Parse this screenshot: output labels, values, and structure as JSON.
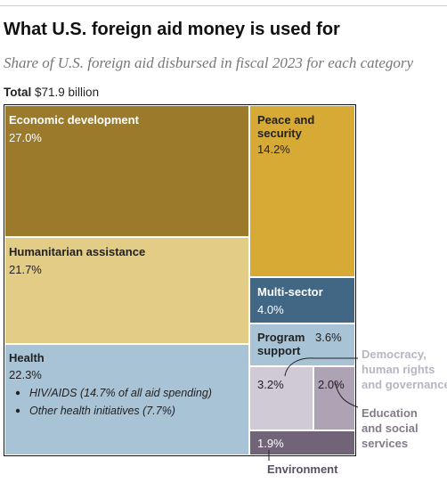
{
  "header": {
    "title": "What U.S. foreign aid money is used for",
    "subtitle": "Share of U.S. foreign aid disbursed in fiscal 2023 for each category",
    "total_label": "Total",
    "total_value": "$71.9 billion"
  },
  "chart_data": {
    "type": "treemap",
    "title": "What U.S. foreign aid money is used for",
    "subtitle": "Share of U.S. foreign aid disbursed in fiscal 2023 for each category",
    "total": "$71.9 billion",
    "unit": "%",
    "cells": [
      {
        "id": "economic",
        "label": [
          "Economic development"
        ],
        "value": 27.0,
        "value_label": "27.0%",
        "color": "#9b7b2b",
        "text_color": "#ffffff"
      },
      {
        "id": "humanitarian",
        "label": [
          "Humanitarian assistance"
        ],
        "value": 21.7,
        "value_label": "21.7%",
        "color": "#e3cd86",
        "text_color": "#222222"
      },
      {
        "id": "health",
        "label": [
          "Health"
        ],
        "value": 22.3,
        "value_label": "22.3%",
        "color": "#a9c3d6",
        "text_color": "#222222",
        "sub_items": [
          "HIV/AIDS (14.7% of all aid spending)",
          "Other health initiatives (7.7%)"
        ]
      },
      {
        "id": "peace",
        "label": [
          "Peace and",
          "security"
        ],
        "value": 14.2,
        "value_label": "14.2%",
        "color": "#d6aa34",
        "text_color": "#222222"
      },
      {
        "id": "multisector",
        "label": [
          "Multi-sector"
        ],
        "value": 4.0,
        "value_label": "4.0%",
        "color": "#426784",
        "text_color": "#ffffff"
      },
      {
        "id": "program",
        "label": [
          "Program",
          "support"
        ],
        "value": 3.6,
        "value_label": "3.6%",
        "color": "#a9c3d6",
        "text_color": "#222222"
      },
      {
        "id": "democracy",
        "label": [
          "Democracy,",
          "human rights",
          "and governance"
        ],
        "value": 3.2,
        "value_label": "3.2%",
        "color": "#d0c9d6",
        "text_color": "#222222"
      },
      {
        "id": "education",
        "label": [
          "Education",
          "and social",
          "services"
        ],
        "value": 2.0,
        "value_label": "2.0%",
        "color": "#aea3b5",
        "text_color": "#222222"
      },
      {
        "id": "environment",
        "label": [
          "Environment"
        ],
        "value": 1.9,
        "value_label": "1.9%",
        "color": "#716479",
        "text_color": "#ffffff"
      }
    ],
    "callouts": {
      "democracy_color": "#b9b4c2",
      "education_color": "#847a8a",
      "environment_color": "#5c5064"
    }
  }
}
